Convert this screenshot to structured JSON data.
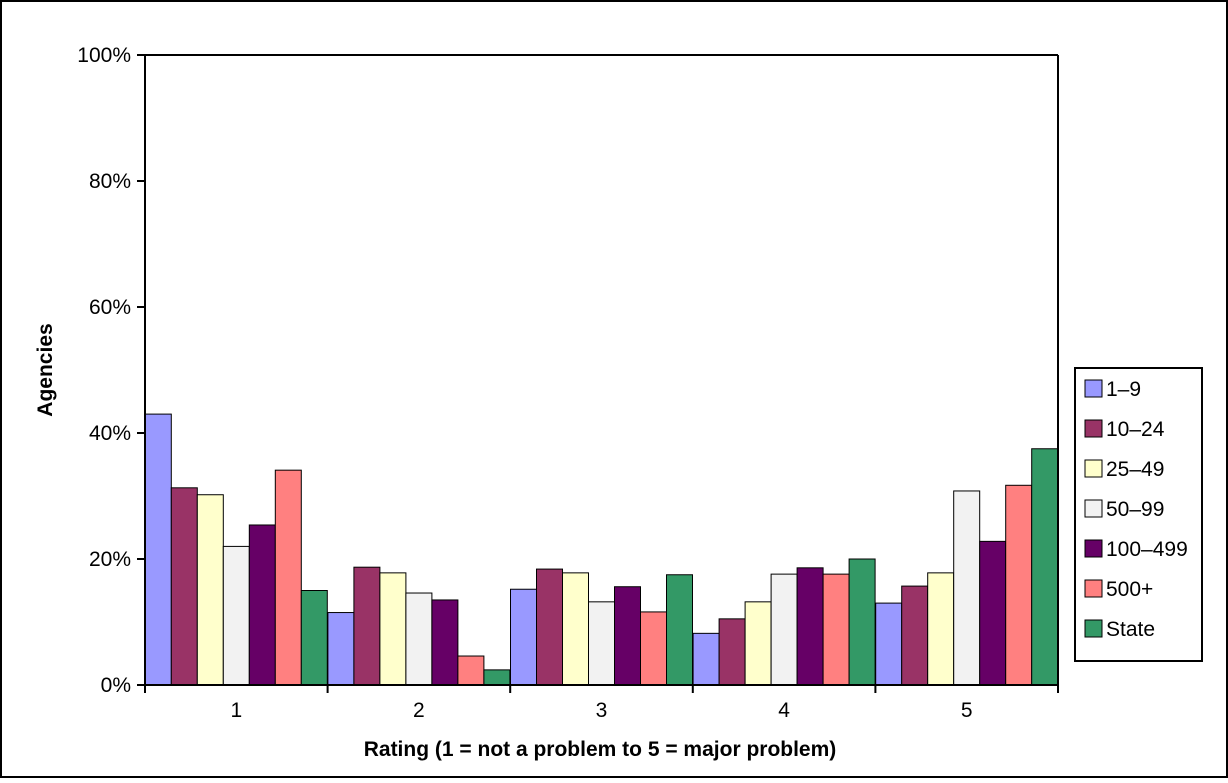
{
  "chart_data": {
    "type": "bar",
    "title": "",
    "xlabel": "Rating (1 = not a problem to 5 = major problem)",
    "ylabel": "Agencies",
    "categories": [
      "1",
      "2",
      "3",
      "4",
      "5"
    ],
    "ylim": [
      0,
      100
    ],
    "yticks": [
      0,
      20,
      40,
      60,
      80,
      100
    ],
    "ytick_labels": [
      "0%",
      "20%",
      "40%",
      "60%",
      "80%",
      "100%"
    ],
    "grid": false,
    "legend_position": "right",
    "series": [
      {
        "name": "1–9",
        "color": "#9999FF",
        "values": [
          43,
          11.5,
          15.2,
          8.2,
          13
        ]
      },
      {
        "name": "10–24",
        "color": "#993366",
        "values": [
          31.3,
          18.7,
          18.4,
          10.5,
          15.7
        ]
      },
      {
        "name": "25–49",
        "color": "#FFFFCC",
        "values": [
          30.2,
          17.8,
          17.8,
          13.2,
          17.8
        ]
      },
      {
        "name": "50–99",
        "color": "#F2F2F2",
        "values": [
          22,
          14.6,
          13.2,
          17.6,
          30.8
        ]
      },
      {
        "name": "100–499",
        "color": "#660066",
        "values": [
          25.4,
          13.5,
          15.6,
          18.6,
          22.8
        ]
      },
      {
        "name": "500+",
        "color": "#FF8080",
        "values": [
          34.1,
          4.6,
          11.6,
          17.6,
          31.7
        ]
      },
      {
        "name": "State",
        "color": "#339966",
        "values": [
          15,
          2.4,
          17.5,
          20,
          37.5
        ]
      }
    ]
  }
}
